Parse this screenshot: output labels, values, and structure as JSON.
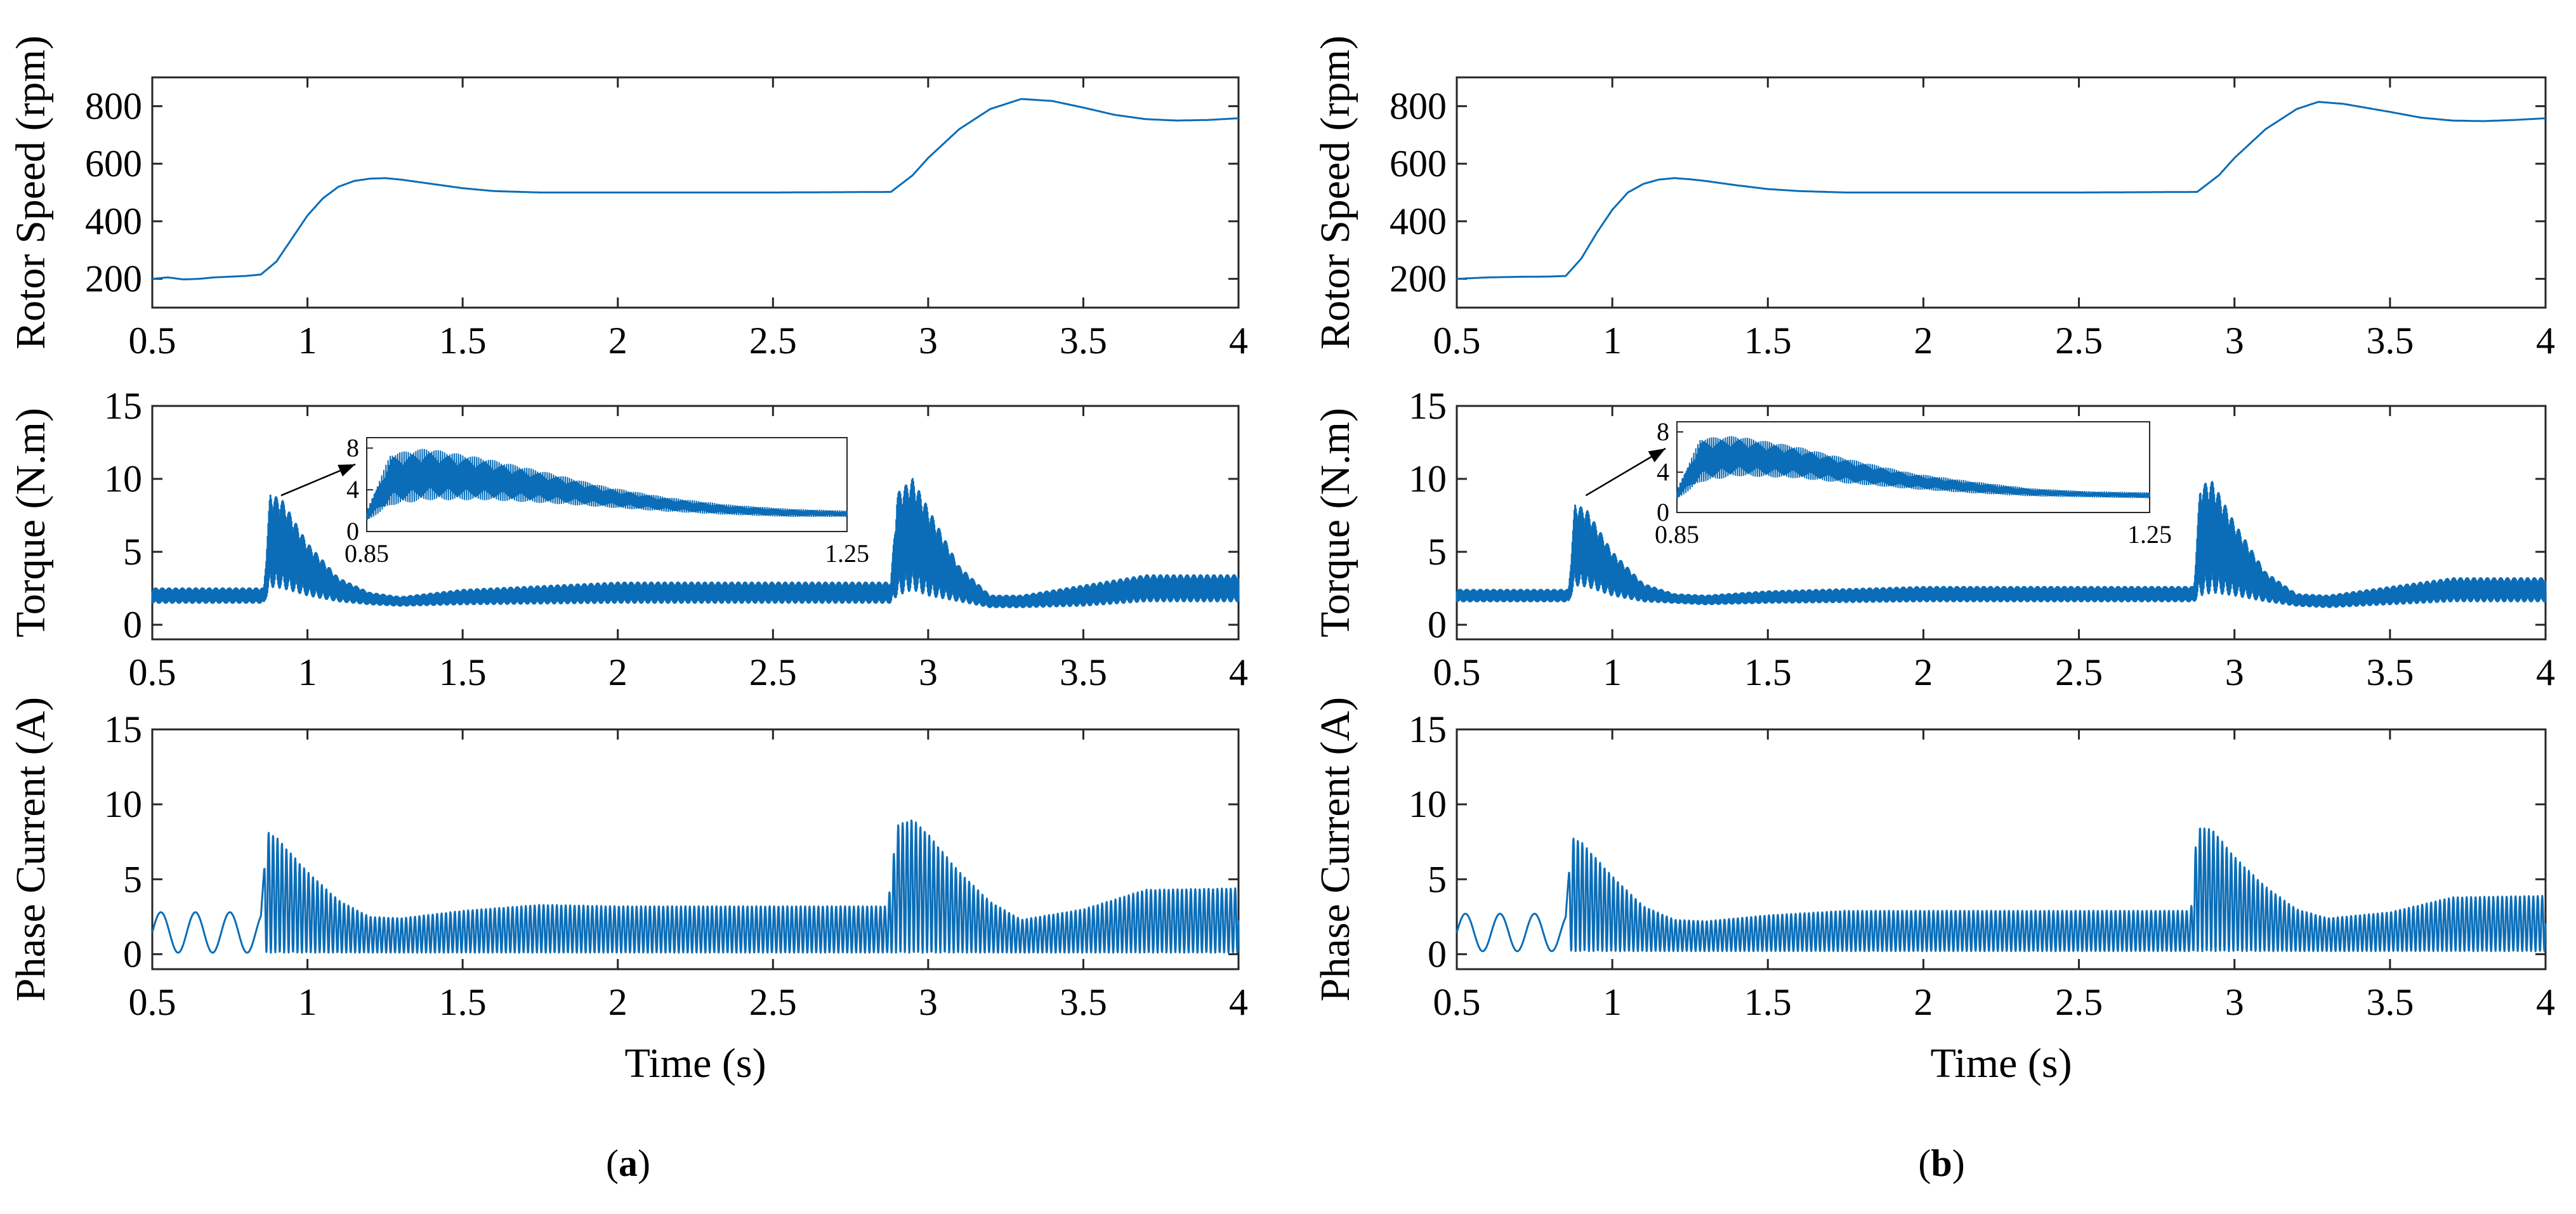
{
  "figure": {
    "line_color": "#0b6db7",
    "captions": [
      {
        "open": "(",
        "letter": "a",
        "close": ")"
      },
      {
        "open": "(",
        "letter": "b",
        "close": ")"
      }
    ]
  },
  "chart_data": [
    {
      "type": "line",
      "panel": "a",
      "title": "",
      "xlabel": "",
      "ylabel": "Rotor Speed (rpm)",
      "xlim": [
        0.5,
        4
      ],
      "ylim": [
        100,
        900
      ],
      "xticks": [
        0.5,
        1,
        1.5,
        2,
        2.5,
        3,
        3.5,
        4
      ],
      "xtick_labels": [
        "0.5",
        "1",
        "1.5",
        "2",
        "2.5",
        "3",
        "3.5",
        "4"
      ],
      "yticks": [
        200,
        400,
        600,
        800
      ],
      "ytick_labels": [
        "200",
        "400",
        "600",
        "800"
      ],
      "series": [
        {
          "name": "speed",
          "x": [
            0.5,
            0.55,
            0.6,
            0.65,
            0.7,
            0.8,
            0.85,
            0.9,
            0.95,
            1.0,
            1.05,
            1.1,
            1.15,
            1.2,
            1.25,
            1.3,
            1.4,
            1.5,
            1.6,
            1.75,
            2.0,
            2.5,
            2.88,
            2.95,
            3.0,
            3.1,
            3.2,
            3.3,
            3.4,
            3.5,
            3.6,
            3.7,
            3.8,
            3.9,
            4.0
          ],
          "values": [
            200,
            205,
            198,
            200,
            205,
            210,
            215,
            260,
            340,
            420,
            480,
            520,
            540,
            548,
            550,
            545,
            530,
            515,
            505,
            500,
            500,
            500,
            502,
            560,
            620,
            720,
            790,
            825,
            818,
            795,
            770,
            755,
            750,
            752,
            758
          ]
        }
      ]
    },
    {
      "type": "line",
      "panel": "a",
      "title": "",
      "xlabel": "",
      "ylabel": "Torque (N.m)",
      "xlim": [
        0.5,
        4
      ],
      "ylim": [
        -1,
        15
      ],
      "xticks": [
        0.5,
        1,
        1.5,
        2,
        2.5,
        3,
        3.5,
        4
      ],
      "xtick_labels": [
        "0.5",
        "1",
        "1.5",
        "2",
        "2.5",
        "3",
        "3.5",
        "4"
      ],
      "yticks": [
        0,
        5,
        10,
        15
      ],
      "ytick_labels": [
        "0",
        "5",
        "10",
        "15"
      ],
      "series": [
        {
          "name": "torque_mean",
          "x": [
            0.5,
            0.86,
            0.88,
            0.92,
            1.0,
            1.1,
            1.2,
            1.3,
            1.5,
            2.0,
            2.5,
            2.88,
            2.9,
            2.95,
            3.0,
            3.1,
            3.2,
            3.3,
            3.5,
            3.7,
            4.0
          ],
          "values": [
            2.0,
            2.0,
            5.8,
            5.5,
            3.8,
            2.4,
            1.8,
            1.6,
            1.9,
            2.2,
            2.2,
            2.2,
            5.5,
            6.2,
            5.0,
            2.8,
            1.6,
            1.6,
            2.0,
            2.5,
            2.5
          ],
          "ripple_amplitude": [
            0.5,
            0.5,
            3.2,
            3.0,
            1.8,
            0.8,
            0.4,
            0.3,
            0.5,
            0.7,
            0.7,
            0.7,
            3.5,
            3.8,
            3.0,
            1.2,
            0.4,
            0.4,
            0.7,
            0.9,
            0.9
          ]
        }
      ],
      "inset": {
        "xlim": [
          0.85,
          1.25
        ],
        "ylim": [
          0,
          9
        ],
        "xtick_labels": [
          "0.85",
          "1.25"
        ],
        "yticks": [
          0,
          4,
          8
        ],
        "ytick_labels": [
          "0",
          "4",
          "8"
        ],
        "x": [
          0.85,
          0.87,
          0.9,
          0.95,
          1.0,
          1.05,
          1.1,
          1.15,
          1.2,
          1.25
        ],
        "values": [
          1.5,
          5.0,
          5.5,
          5.0,
          4.2,
          3.3,
          2.6,
          2.1,
          1.8,
          1.7
        ],
        "ripple_amplitude": [
          0.5,
          2.5,
          2.5,
          2.0,
          1.5,
          1.0,
          0.7,
          0.5,
          0.4,
          0.3
        ]
      }
    },
    {
      "type": "line",
      "panel": "a",
      "title": "",
      "xlabel": "Time (s)",
      "ylabel": "Phase Current (A)",
      "xlim": [
        0.5,
        4
      ],
      "ylim": [
        -1,
        15
      ],
      "xticks": [
        0.5,
        1,
        1.5,
        2,
        2.5,
        3,
        3.5,
        4
      ],
      "xtick_labels": [
        "0.5",
        "1",
        "1.5",
        "2",
        "2.5",
        "3",
        "3.5",
        "4"
      ],
      "yticks": [
        0,
        5,
        10,
        15
      ],
      "ytick_labels": [
        "0",
        "5",
        "10",
        "15"
      ],
      "series": [
        {
          "name": "current_envelope",
          "x": [
            0.5,
            0.85,
            0.87,
            0.9,
            1.0,
            1.1,
            1.2,
            1.3,
            1.5,
            1.75,
            2.0,
            2.5,
            2.87,
            2.9,
            2.95,
            3.0,
            3.1,
            3.2,
            3.3,
            3.5,
            3.7,
            4.0
          ],
          "values": [
            2.8,
            2.8,
            8.2,
            7.8,
            5.5,
            3.6,
            2.5,
            2.4,
            2.9,
            3.3,
            3.2,
            3.2,
            3.2,
            8.6,
            9.0,
            8.0,
            5.5,
            3.5,
            2.3,
            3.0,
            4.3,
            4.4
          ],
          "min": 0.1
        }
      ]
    },
    {
      "type": "line",
      "panel": "b",
      "title": "",
      "xlabel": "",
      "ylabel": "Rotor Speed (rpm)",
      "xlim": [
        0.5,
        4
      ],
      "ylim": [
        100,
        900
      ],
      "xticks": [
        0.5,
        1,
        1.5,
        2,
        2.5,
        3,
        3.5,
        4
      ],
      "xtick_labels": [
        "0.5",
        "1",
        "1.5",
        "2",
        "2.5",
        "3",
        "3.5",
        "4"
      ],
      "yticks": [
        200,
        400,
        600,
        800
      ],
      "ytick_labels": [
        "200",
        "400",
        "600",
        "800"
      ],
      "series": [
        {
          "name": "speed",
          "x": [
            0.5,
            0.6,
            0.7,
            0.8,
            0.85,
            0.9,
            0.95,
            1.0,
            1.05,
            1.1,
            1.15,
            1.2,
            1.25,
            1.3,
            1.4,
            1.5,
            1.6,
            1.75,
            2.0,
            2.5,
            2.88,
            2.95,
            3.0,
            3.1,
            3.2,
            3.27,
            3.35,
            3.5,
            3.6,
            3.7,
            3.8,
            3.9,
            4.0
          ],
          "values": [
            200,
            205,
            207,
            208,
            210,
            270,
            360,
            440,
            500,
            530,
            545,
            550,
            546,
            540,
            525,
            512,
            505,
            500,
            500,
            500,
            502,
            560,
            620,
            720,
            790,
            815,
            808,
            780,
            760,
            750,
            748,
            752,
            758
          ]
        }
      ]
    },
    {
      "type": "line",
      "panel": "b",
      "title": "",
      "xlabel": "",
      "ylabel": "Torque (N.m)",
      "xlim": [
        0.5,
        4
      ],
      "ylim": [
        -1,
        15
      ],
      "xticks": [
        0.5,
        1,
        1.5,
        2,
        2.5,
        3,
        3.5,
        4
      ],
      "xtick_labels": [
        "0.5",
        "1",
        "1.5",
        "2",
        "2.5",
        "3",
        "3.5",
        "4"
      ],
      "yticks": [
        0,
        5,
        10,
        15
      ],
      "ytick_labels": [
        "0",
        "5",
        "10",
        "15"
      ],
      "series": [
        {
          "name": "torque_mean",
          "x": [
            0.5,
            0.86,
            0.88,
            0.92,
            1.0,
            1.1,
            1.2,
            1.3,
            1.5,
            2.0,
            2.5,
            2.87,
            2.89,
            2.93,
            3.0,
            3.1,
            3.2,
            3.3,
            3.5,
            3.7,
            4.0
          ],
          "values": [
            2.0,
            2.0,
            5.5,
            5.2,
            3.5,
            2.2,
            1.8,
            1.7,
            1.9,
            2.1,
            2.1,
            2.1,
            5.8,
            6.0,
            4.5,
            2.6,
            1.7,
            1.6,
            2.0,
            2.4,
            2.4
          ],
          "ripple_amplitude": [
            0.4,
            0.4,
            2.8,
            2.6,
            1.5,
            0.6,
            0.3,
            0.3,
            0.4,
            0.5,
            0.5,
            0.5,
            3.8,
            3.8,
            2.5,
            1.0,
            0.4,
            0.4,
            0.6,
            0.8,
            0.8
          ]
        }
      ],
      "inset": {
        "xlim": [
          0.85,
          1.25
        ],
        "ylim": [
          0,
          9
        ],
        "xtick_labels": [
          "0.85",
          "1.25"
        ],
        "yticks": [
          0,
          4,
          8
        ],
        "ytick_labels": [
          "0",
          "4",
          "8"
        ],
        "x": [
          0.85,
          0.87,
          0.9,
          0.95,
          1.0,
          1.05,
          1.1,
          1.15,
          1.2,
          1.25
        ],
        "values": [
          1.8,
          5.2,
          5.6,
          5.0,
          4.0,
          3.1,
          2.5,
          2.0,
          1.8,
          1.7
        ],
        "ripple_amplitude": [
          0.5,
          2.2,
          2.0,
          1.6,
          1.2,
          0.8,
          0.6,
          0.4,
          0.3,
          0.3
        ]
      }
    },
    {
      "type": "line",
      "panel": "b",
      "title": "",
      "xlabel": "Time (s)",
      "ylabel": "Phase Current (A)",
      "xlim": [
        0.5,
        4
      ],
      "ylim": [
        -1,
        15
      ],
      "xticks": [
        0.5,
        1,
        1.5,
        2,
        2.5,
        3,
        3.5,
        4
      ],
      "xtick_labels": [
        "0.5",
        "1",
        "1.5",
        "2",
        "2.5",
        "3",
        "3.5",
        "4"
      ],
      "yticks": [
        0,
        5,
        10,
        15
      ],
      "ytick_labels": [
        "0",
        "5",
        "10",
        "15"
      ],
      "series": [
        {
          "name": "current_envelope",
          "x": [
            0.5,
            0.85,
            0.87,
            0.9,
            1.0,
            1.1,
            1.2,
            1.3,
            1.5,
            1.75,
            2.0,
            2.5,
            2.86,
            2.88,
            2.93,
            3.0,
            3.1,
            3.2,
            3.3,
            3.5,
            3.7,
            4.0
          ],
          "values": [
            2.7,
            2.7,
            7.8,
            7.5,
            5.2,
            3.2,
            2.3,
            2.2,
            2.6,
            2.9,
            2.9,
            2.9,
            2.9,
            8.5,
            8.3,
            6.5,
            4.5,
            3.0,
            2.4,
            2.8,
            3.8,
            3.9
          ],
          "min": 0.2
        }
      ]
    }
  ]
}
